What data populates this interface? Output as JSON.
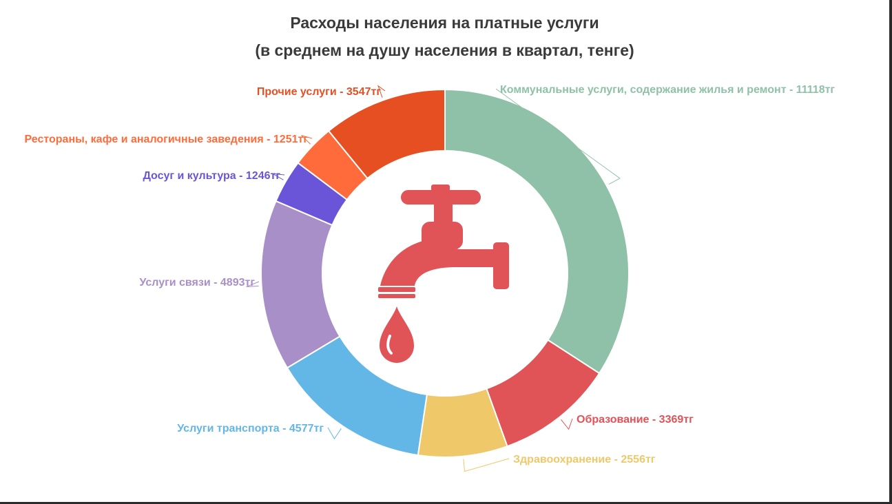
{
  "chart_data": {
    "type": "pie",
    "variant": "donut",
    "title": "Расходы населения на платные услуги",
    "subtitle": "(в среднем на душу населения в квартал, тенге)",
    "start_angle_deg": 0,
    "direction": "clockwise",
    "slices": [
      {
        "label": "Коммунальные услуги, содержание жилья и ремонт - 11118тг",
        "value": 11118,
        "color": "#8fc1a8"
      },
      {
        "label": "Образование - 3369тг",
        "value": 3369,
        "color": "#e05357"
      },
      {
        "label": "Здравоохранение - 2556тг",
        "value": 2556,
        "color": "#efc86a"
      },
      {
        "label": "Услуги транспорта - 4577тг",
        "value": 4577,
        "color": "#62b7e6"
      },
      {
        "label": "Услуги связи - 4893тг",
        "value": 4893,
        "color": "#a98fc7"
      },
      {
        "label": "Досуг и культура - 1246тг",
        "value": 1246,
        "color": "#6a55d8"
      },
      {
        "label": "Рестораны, кафе и аналогичные заведения - 1251тг",
        "value": 1251,
        "color": "#ff6b3a"
      },
      {
        "label": "Прочие услуги - 3547тг",
        "value": 3547,
        "color": "#e64f22"
      }
    ],
    "center_icon": {
      "name": "water-tap-icon",
      "color": "#e05357"
    },
    "legend": "none"
  }
}
